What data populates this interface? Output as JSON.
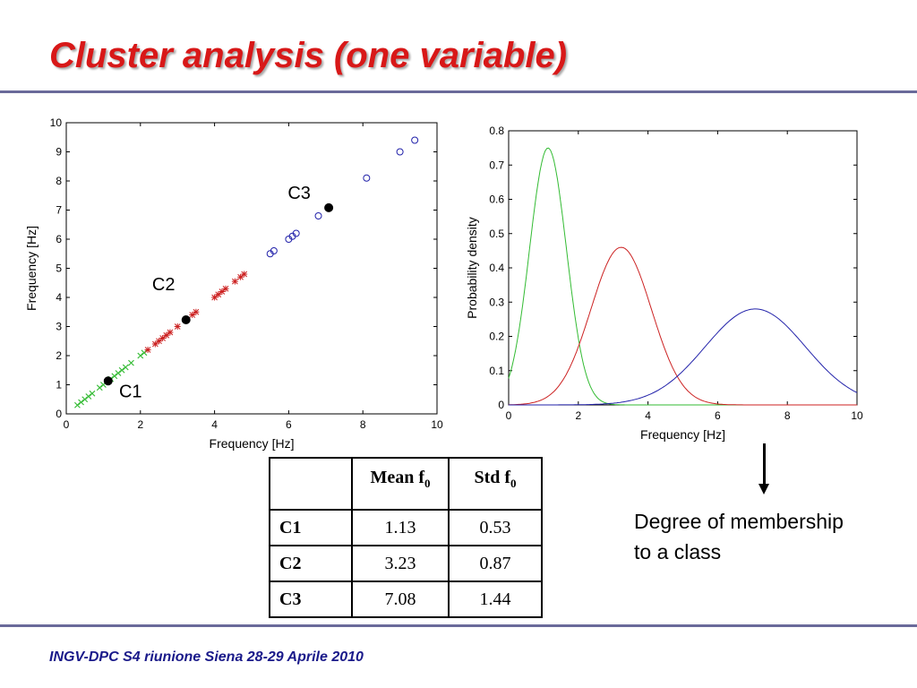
{
  "slide": {
    "title": "Cluster analysis (one variable)",
    "footer": "INGV-DPC S4 riunione Siena 28-29 Aprile 2010",
    "membership_note": "Degree of membership to a class"
  },
  "colors": {
    "title": "#d81818",
    "rule": "#6a6a9a",
    "footer": "#1a1a8a",
    "C1": "#33bb33",
    "C2": "#cc2222",
    "C3": "#2222aa"
  },
  "table": {
    "headers": [
      "",
      "Mean f",
      "Std f"
    ],
    "header_subscript": "0",
    "rows": [
      {
        "label": "C1",
        "mean": "1.13",
        "std": "0.53"
      },
      {
        "label": "C2",
        "mean": "3.23",
        "std": "0.87"
      },
      {
        "label": "C3",
        "mean": "7.08",
        "std": "1.44"
      }
    ]
  },
  "chart_data": [
    {
      "type": "scatter",
      "xlabel": "Frequency [Hz]",
      "ylabel": "Frequency [Hz]",
      "xlim": [
        0,
        10
      ],
      "ylim": [
        0,
        10
      ],
      "xticks": [
        0,
        2,
        4,
        6,
        8,
        10
      ],
      "yticks": [
        0,
        1,
        2,
        3,
        4,
        5,
        6,
        7,
        8,
        9,
        10
      ],
      "grid": false,
      "series": [
        {
          "name": "C1",
          "marker": "x",
          "color": "#33bb33",
          "x": [
            0.3,
            0.4,
            0.5,
            0.6,
            0.7,
            0.9,
            1.0,
            1.2,
            1.3,
            1.4,
            1.5,
            1.6,
            1.75,
            2.0,
            2.1
          ],
          "y": [
            0.3,
            0.4,
            0.5,
            0.6,
            0.7,
            0.9,
            1.0,
            1.2,
            1.3,
            1.4,
            1.5,
            1.6,
            1.75,
            2.0,
            2.1
          ]
        },
        {
          "name": "C2",
          "marker": "*",
          "color": "#cc2222",
          "x": [
            2.2,
            2.4,
            2.5,
            2.6,
            2.7,
            2.8,
            3.0,
            3.4,
            3.5,
            4.0,
            4.1,
            4.2,
            4.3,
            4.55,
            4.7,
            4.8
          ],
          "y": [
            2.2,
            2.4,
            2.5,
            2.6,
            2.7,
            2.8,
            3.0,
            3.4,
            3.5,
            4.0,
            4.1,
            4.2,
            4.3,
            4.55,
            4.7,
            4.8
          ]
        },
        {
          "name": "C3",
          "marker": "o",
          "color": "#2222aa",
          "x": [
            5.5,
            5.6,
            6.0,
            6.1,
            6.2,
            6.8,
            8.1,
            9.0,
            9.4
          ],
          "y": [
            5.5,
            5.6,
            6.0,
            6.1,
            6.2,
            6.8,
            8.1,
            9.0,
            9.4
          ]
        }
      ],
      "centroids": [
        {
          "label": "C1",
          "x": 1.13,
          "y": 1.13
        },
        {
          "label": "C2",
          "x": 3.23,
          "y": 3.23
        },
        {
          "label": "C3",
          "x": 7.08,
          "y": 7.08
        }
      ]
    },
    {
      "type": "line",
      "xlabel": "Frequency [Hz]",
      "ylabel": "Probability density",
      "xlim": [
        0,
        10
      ],
      "ylim": [
        0,
        0.8
      ],
      "xticks": [
        0,
        2,
        4,
        6,
        8,
        10
      ],
      "yticks": [
        0,
        0.1,
        0.2,
        0.3,
        0.4,
        0.5,
        0.6,
        0.7,
        0.8
      ],
      "grid": false,
      "series": [
        {
          "color": "#33bb33",
          "mean": 1.13,
          "std": 0.53,
          "peak": 0.75
        },
        {
          "color": "#cc2222",
          "mean": 3.23,
          "std": 0.87,
          "peak": 0.46
        },
        {
          "color": "#2222aa",
          "mean": 7.08,
          "std": 1.44,
          "peak": 0.28
        }
      ]
    }
  ]
}
